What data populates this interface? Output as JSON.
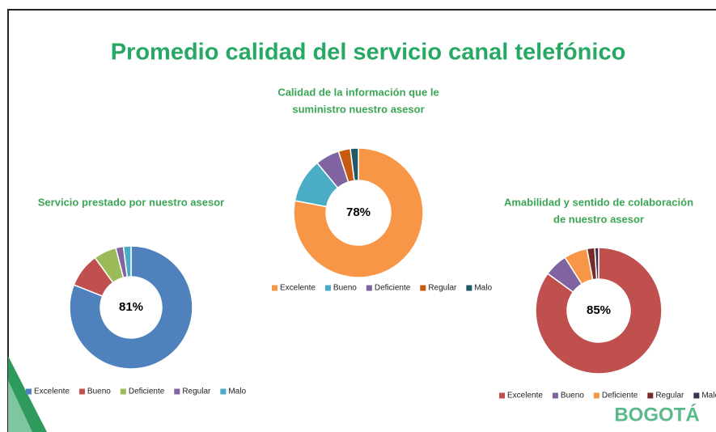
{
  "title": "Promedio calidad del servicio canal telefónico",
  "logo": "BOGOTÁ",
  "chart_data": [
    {
      "type": "donut",
      "title": [
        "Servicio prestado por nuestro asesor"
      ],
      "center_label": "81%",
      "categories": [
        "Excelente",
        "Bueno",
        "Deficiente",
        "Regular",
        "Malo"
      ],
      "values": [
        81,
        9,
        6,
        2,
        2
      ],
      "colors": [
        "#4f81bd",
        "#c0504d",
        "#9bbb59",
        "#8064a2",
        "#4bacc6"
      ]
    },
    {
      "type": "donut",
      "title": [
        "Calidad de la información que le",
        "suministro nuestro asesor"
      ],
      "center_label": "78%",
      "categories": [
        "Excelente",
        "Bueno",
        "Deficiente",
        "Regular",
        "Malo"
      ],
      "values": [
        78,
        11,
        6,
        3,
        2
      ],
      "colors": [
        "#f79646",
        "#4bacc6",
        "#8064a2",
        "#c55a11",
        "#215967"
      ]
    },
    {
      "type": "donut",
      "title": [
        "Amabilidad y sentido de colaboración",
        "de nuestro asesor"
      ],
      "center_label": "85%",
      "categories": [
        "Excelente",
        "Bueno",
        "Deficiente",
        "Regular",
        "Malo"
      ],
      "values": [
        85,
        6,
        6,
        2,
        1
      ],
      "colors": [
        "#c0504d",
        "#8064a2",
        "#f79646",
        "#772c2a",
        "#3f3151"
      ]
    }
  ]
}
